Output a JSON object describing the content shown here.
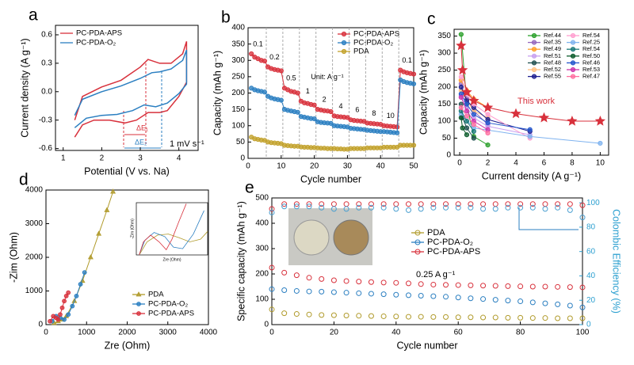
{
  "chart_data": [
    {
      "type": "line",
      "label": "a",
      "xlabel": "Potential (V vs. Na)",
      "ylabel": "Current density (A g⁻¹)",
      "xlim": [
        0.8,
        4.5
      ],
      "xticks": [
        1,
        2,
        3,
        4
      ],
      "ylim": [
        -0.62,
        0.7
      ],
      "yticks": [
        -0.6,
        -0.3,
        {
          "value": 0,
          "label": "0.0"
        },
        0.3,
        0.6
      ],
      "legend": "upper left",
      "annotations": [
        "ΔE₁",
        "ΔE₂",
        "1 mV s⁻¹"
      ],
      "series": [
        {
          "name": "PC-PDA-APS",
          "color": "#d8313c",
          "x": [
            1.3,
            1.5,
            2.0,
            2.5,
            3.0,
            3.2,
            3.5,
            3.8,
            4.1,
            4.2,
            4.2,
            4.0,
            3.7,
            3.5,
            3.2,
            2.9,
            2.6,
            2.2,
            1.8,
            1.5,
            1.3
          ],
          "values": [
            -0.3,
            -0.05,
            0.05,
            0.12,
            0.26,
            0.34,
            0.3,
            0.3,
            0.4,
            0.53,
            0.1,
            -0.05,
            -0.2,
            -0.22,
            -0.22,
            -0.3,
            -0.33,
            -0.3,
            -0.3,
            -0.35,
            -0.48
          ]
        },
        {
          "name": "PC-PDA-O₂",
          "color": "#2b7fc1",
          "x": [
            1.3,
            1.5,
            2.0,
            2.5,
            3.0,
            3.3,
            3.5,
            3.8,
            4.1,
            4.2,
            4.2,
            4.0,
            3.7,
            3.4,
            3.1,
            2.8,
            2.4,
            2.0,
            1.6,
            1.3
          ],
          "values": [
            -0.25,
            -0.08,
            0.0,
            0.06,
            0.14,
            0.2,
            0.21,
            0.24,
            0.33,
            0.44,
            0.08,
            -0.02,
            -0.12,
            -0.16,
            -0.14,
            -0.2,
            -0.24,
            -0.25,
            -0.28,
            -0.38
          ]
        }
      ]
    },
    {
      "type": "line",
      "label": "b",
      "xlabel": "Cycle number",
      "ylabel": "Capacity (mAh g⁻¹)",
      "xlim": [
        0,
        50
      ],
      "xticks": [
        0,
        10,
        20,
        30,
        40,
        50
      ],
      "ylim": [
        0,
        400
      ],
      "yticks": [
        0,
        50,
        100,
        150,
        200,
        250,
        300,
        350,
        400
      ],
      "legend": "upper right",
      "rate_labels": [
        "0.1",
        "0.2",
        "0.5",
        "1",
        "2",
        "4",
        "6",
        "8",
        "10",
        "0.1"
      ],
      "unit_label": "Unit: A g⁻¹",
      "x": [
        1,
        2,
        3,
        4,
        5,
        6,
        7,
        8,
        9,
        10,
        11,
        12,
        13,
        14,
        15,
        16,
        17,
        18,
        19,
        20,
        21,
        22,
        23,
        24,
        25,
        26,
        27,
        28,
        29,
        30,
        31,
        32,
        33,
        34,
        35,
        36,
        37,
        38,
        39,
        40,
        41,
        42,
        43,
        44,
        45,
        46,
        47,
        48,
        49,
        50
      ],
      "series": [
        {
          "name": "PC-PDA-APS",
          "color": "#d8313c",
          "marker": "circle",
          "values": [
            320,
            310,
            305,
            300,
            298,
            280,
            275,
            272,
            270,
            268,
            215,
            210,
            205,
            203,
            200,
            175,
            170,
            168,
            165,
            163,
            150,
            148,
            146,
            145,
            143,
            130,
            128,
            127,
            126,
            125,
            118,
            116,
            115,
            114,
            113,
            108,
            107,
            106,
            105,
            104,
            100,
            99,
            98,
            97,
            96,
            270,
            265,
            262,
            260,
            258
          ]
        },
        {
          "name": "PC-PDA-O₂",
          "color": "#2b7fc1",
          "marker": "circle",
          "values": [
            215,
            210,
            207,
            205,
            203,
            190,
            185,
            182,
            180,
            178,
            150,
            147,
            145,
            143,
            141,
            128,
            126,
            124,
            122,
            121,
            112,
            110,
            109,
            108,
            107,
            100,
            99,
            98,
            97,
            96,
            92,
            91,
            90,
            89,
            88,
            86,
            85,
            84,
            83,
            82,
            82,
            81,
            80,
            79,
            78,
            240,
            235,
            232,
            230,
            228
          ]
        },
        {
          "name": "PDA",
          "color": "#c2a12b",
          "marker": "circle",
          "values": [
            65,
            60,
            58,
            56,
            55,
            50,
            48,
            47,
            46,
            45,
            40,
            39,
            38,
            37,
            37,
            35,
            34,
            34,
            33,
            33,
            32,
            31,
            31,
            30,
            30,
            30,
            29,
            29,
            28,
            28,
            30,
            30,
            30,
            30,
            30,
            32,
            32,
            32,
            32,
            32,
            34,
            34,
            34,
            34,
            34,
            40,
            40,
            40,
            40,
            40
          ]
        }
      ]
    },
    {
      "type": "line",
      "label": "c",
      "xlabel": "Current density (A g⁻¹)",
      "ylabel": "Capacity (mAh g⁻¹)",
      "xlim": [
        -0.4,
        10.6
      ],
      "xticks": [
        0,
        2,
        4,
        6,
        8,
        10
      ],
      "ylim": [
        0,
        370
      ],
      "yticks": [
        0,
        50,
        100,
        150,
        200,
        250,
        300,
        350
      ],
      "legend": "upper right",
      "legend_columns": 2,
      "annotations": [
        "This work"
      ],
      "series": [
        {
          "name": "Ref.44",
          "color": "#2ca02c",
          "marker": "circle",
          "x": [
            0.1,
            0.5,
            1,
            2
          ],
          "values": [
            355,
            150,
            55,
            30
          ]
        },
        {
          "name": "Ref.35",
          "color": "#9467bd",
          "marker": "circle",
          "x": [
            0.1,
            0.5,
            1,
            2
          ],
          "values": [
            210,
            165,
            130,
            90
          ]
        },
        {
          "name": "Ref.49",
          "color": "#ff9f2a",
          "marker": "circle",
          "x": [
            0.1,
            0.5,
            1,
            2
          ],
          "values": [
            220,
            190,
            165,
            140
          ]
        },
        {
          "name": "Ref.51",
          "color": "#c79fef",
          "marker": "circle",
          "x": [
            0.1,
            0.5,
            1,
            2,
            5
          ],
          "values": [
            175,
            140,
            110,
            85,
            60
          ]
        },
        {
          "name": "Ref.48",
          "color": "#205050",
          "marker": "circle",
          "x": [
            0.1,
            0.2,
            0.5,
            1
          ],
          "values": [
            150,
            110,
            80,
            50
          ]
        },
        {
          "name": "Ref.52",
          "color": "#ffc080",
          "marker": "circle",
          "x": [
            0.1,
            0.5,
            1,
            2
          ],
          "values": [
            190,
            160,
            130,
            110
          ]
        },
        {
          "name": "Ref.55",
          "color": "#1f1f8f",
          "marker": "circle",
          "x": [
            0.1,
            0.5,
            1,
            2,
            5
          ],
          "values": [
            200,
            160,
            140,
            105,
            70
          ]
        },
        {
          "name": "Ref.54",
          "color": "#ff9ecf",
          "marker": "circle",
          "x": [
            0.1,
            0.5,
            1,
            2,
            5
          ],
          "values": [
            230,
            180,
            150,
            120,
            50
          ]
        },
        {
          "name": "Ref.25",
          "color": "#7fb3ef",
          "marker": "circle",
          "x": [
            0.1,
            1,
            5,
            10
          ],
          "values": [
            120,
            80,
            55,
            35
          ]
        },
        {
          "name": "Ref.54",
          "color": "#1a7a7a",
          "marker": "circle",
          "x": [
            0.1,
            0.5,
            1
          ],
          "values": [
            130,
            100,
            70
          ]
        },
        {
          "name": "Ref.50",
          "color": "#0b5b2b",
          "marker": "circle",
          "x": [
            0.1,
            0.2,
            0.5
          ],
          "values": [
            110,
            80,
            60
          ]
        },
        {
          "name": "Ref.46",
          "color": "#2255cc",
          "marker": "circle",
          "x": [
            0.1,
            0.5,
            1,
            2,
            5
          ],
          "values": [
            180,
            150,
            120,
            95,
            75
          ]
        },
        {
          "name": "Ref.53",
          "color": "#cc33aa",
          "marker": "circle",
          "x": [
            0.1,
            0.5,
            1,
            2
          ],
          "values": [
            170,
            130,
            100,
            75
          ]
        },
        {
          "name": "Ref.47",
          "color": "#ff6fa0",
          "marker": "circle",
          "x": [
            0.1,
            0.5,
            1,
            2
          ],
          "values": [
            140,
            115,
            90,
            65
          ]
        },
        {
          "color": "#d8313c",
          "marker": "star",
          "x": [
            0.1,
            0.2,
            0.5,
            1,
            2,
            4,
            6,
            8,
            10
          ],
          "values": [
            322,
            250,
            185,
            160,
            140,
            122,
            110,
            100,
            100
          ]
        }
      ]
    },
    {
      "type": "line",
      "label": "d",
      "xlabel": "Zre (Ohm)",
      "ylabel": "-Zim (Ohm)",
      "xlim": [
        0,
        4000
      ],
      "xticks": [
        0,
        1000,
        2000,
        3000,
        4000
      ],
      "ylim": [
        0,
        4000
      ],
      "yticks": [
        0,
        1000,
        2000,
        3000,
        4000
      ],
      "legend": "lower right",
      "series": [
        {
          "name": "PDA",
          "color": "#b09a2a",
          "marker": "triangle",
          "x": [
            200,
            300,
            400,
            500,
            700,
            900,
            1100,
            1300,
            1500,
            1650
          ],
          "values": [
            50,
            100,
            150,
            250,
            700,
            1300,
            2000,
            2700,
            3400,
            3950
          ]
        },
        {
          "name": "PC-PDA-O₂",
          "color": "#2b7fc1",
          "marker": "circle",
          "x": [
            150,
            250,
            350,
            450,
            550,
            650,
            750,
            850,
            950
          ],
          "values": [
            100,
            250,
            200,
            150,
            300,
            550,
            850,
            1200,
            1550
          ]
        },
        {
          "name": "PC-PDA-APS",
          "color": "#d8313c",
          "marker": "circle",
          "x": [
            100,
            180,
            250,
            300,
            350,
            400,
            450,
            500,
            550
          ],
          "values": [
            100,
            250,
            200,
            150,
            300,
            500,
            700,
            850,
            950
          ]
        }
      ]
    },
    {
      "type": "scatter",
      "label": "e",
      "xlabel": "Cycle number",
      "ylabel": "Specific capacity (mAh g⁻¹)",
      "y2label": "Colombic Efficiency (%)",
      "xlim": [
        0,
        100
      ],
      "xticks": [
        0,
        20,
        40,
        60,
        80,
        100
      ],
      "ylim": [
        0,
        500
      ],
      "yticks": [
        0,
        100,
        200,
        300,
        400,
        500
      ],
      "y2lim": [
        0,
        104
      ],
      "y2ticks": [
        0,
        20,
        40,
        60,
        80,
        100
      ],
      "legend": "center",
      "annotations": [
        "0.25 A g⁻¹"
      ],
      "x": [
        0,
        4,
        8,
        12,
        16,
        20,
        24,
        28,
        32,
        36,
        40,
        44,
        48,
        52,
        56,
        60,
        64,
        68,
        72,
        76,
        80,
        84,
        88,
        92,
        96,
        100
      ],
      "series": [
        {
          "name": "PDA",
          "color": "#b09a2a",
          "marker": "circle",
          "values": [
            60,
            45,
            42,
            40,
            38,
            37,
            36,
            35,
            34,
            33,
            32,
            31,
            31,
            30,
            30,
            29,
            29,
            28,
            28,
            27,
            27,
            26,
            26,
            25,
            25,
            25
          ]
        },
        {
          "name": "PC-PDA-O₂",
          "color": "#2b7fc1",
          "marker": "circle",
          "values": [
            140,
            136,
            133,
            131,
            130,
            128,
            126,
            124,
            122,
            120,
            118,
            116,
            114,
            112,
            110,
            107,
            104,
            101,
            98,
            95,
            92,
            88,
            84,
            80,
            75,
            68
          ]
        },
        {
          "name": "PC-PDA-APS",
          "color": "#d8313c",
          "marker": "circle",
          "values": [
            225,
            205,
            195,
            185,
            180,
            175,
            172,
            170,
            168,
            166,
            165,
            163,
            160,
            158,
            157,
            156,
            155,
            154,
            153,
            152,
            151,
            150,
            150,
            149,
            148,
            147
          ]
        },
        {
          "color": "#d8313c",
          "marker": "circle",
          "axis": "y2",
          "values": [
            95,
            99,
            99,
            99,
            99,
            99,
            99,
            99,
            99,
            99,
            99,
            99,
            99,
            99,
            99,
            99,
            99,
            99,
            99,
            99,
            99,
            99,
            99,
            99,
            99,
            98
          ]
        },
        {
          "color": "#4a9fd0",
          "marker": "circle",
          "axis": "y2",
          "values": [
            92,
            97,
            97,
            97,
            96,
            95,
            95,
            96,
            96,
            96,
            95,
            94,
            95,
            96,
            96,
            96,
            96,
            95,
            95,
            96,
            96,
            96,
            95,
            96,
            94,
            88
          ]
        }
      ]
    },
    {
      "type": "line",
      "xlabel": "Zre (Ohm)",
      "ylabel": "-Zim (Ohm)",
      "xlim": [
        0,
        1000
      ],
      "ylim": [
        0,
        1000
      ],
      "series": [
        {
          "color": "#b09a2a",
          "x": [
            40,
            150,
            300,
            450,
            600,
            750,
            900,
            1000
          ],
          "values": [
            0,
            250,
            380,
            400,
            330,
            250,
            300,
            450
          ]
        },
        {
          "color": "#2b7fc1",
          "x": [
            40,
            120,
            250,
            400,
            520,
            650,
            800,
            950
          ],
          "values": [
            0,
            280,
            430,
            350,
            150,
            120,
            400,
            850
          ]
        },
        {
          "color": "#d8313c",
          "x": [
            40,
            100,
            200,
            320,
            420,
            500,
            600,
            700
          ],
          "values": [
            0,
            250,
            380,
            250,
            100,
            300,
            650,
            980
          ]
        }
      ]
    }
  ]
}
